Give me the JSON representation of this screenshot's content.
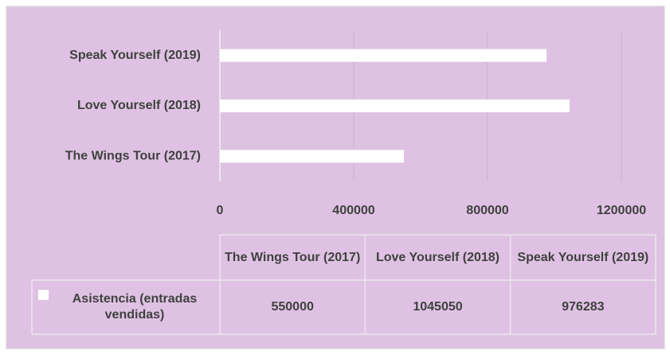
{
  "chart_data": {
    "type": "bar",
    "orientation": "horizontal",
    "categories": [
      "The Wings Tour (2017)",
      "Love Yourself (2018)",
      "Speak Yourself (2019)"
    ],
    "series": [
      {
        "name": "Asistencia (entradas vendidas)",
        "color": "#ffffff",
        "values": [
          550000,
          1045050,
          976283
        ]
      }
    ],
    "xlim": [
      0,
      1200000
    ],
    "xticks": [
      0,
      400000,
      800000,
      1200000
    ],
    "grid": true,
    "data_table": true
  }
}
